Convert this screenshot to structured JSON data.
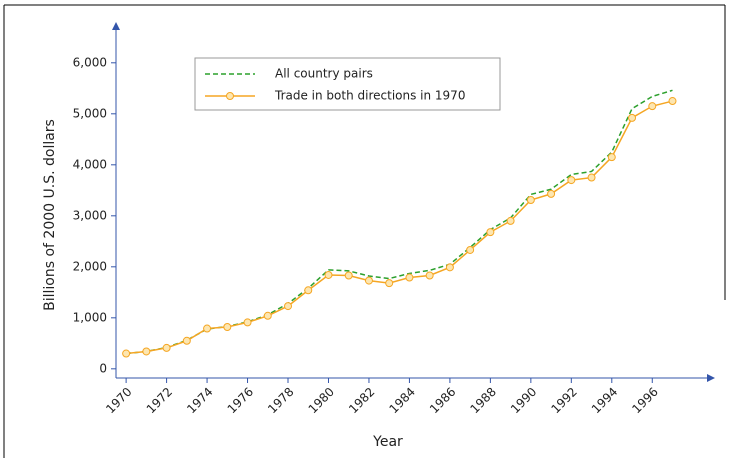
{
  "chart_data": {
    "type": "line",
    "x_label": "Year",
    "y_label": "Billions of 2000 U.S. dollars",
    "x": [
      1970,
      1971,
      1972,
      1973,
      1974,
      1975,
      1976,
      1977,
      1978,
      1979,
      1980,
      1981,
      1982,
      1983,
      1984,
      1985,
      1986,
      1987,
      1988,
      1989,
      1990,
      1991,
      1992,
      1993,
      1994,
      1995,
      1996,
      1997
    ],
    "series": [
      {
        "name": "All country pairs",
        "color": "#2ca02c",
        "dashed": true,
        "markers": false,
        "values": [
          300,
          340,
          420,
          560,
          780,
          830,
          920,
          1060,
          1280,
          1580,
          1940,
          1920,
          1820,
          1770,
          1870,
          1930,
          2050,
          2380,
          2730,
          2960,
          3420,
          3520,
          3810,
          3870,
          4250,
          5100,
          5340,
          5460
        ]
      },
      {
        "name": "Trade in both directions in 1970",
        "color": "#f5a623",
        "dashed": false,
        "markers": true,
        "values": [
          300,
          340,
          410,
          550,
          790,
          820,
          910,
          1040,
          1230,
          1540,
          1840,
          1830,
          1730,
          1680,
          1790,
          1830,
          1990,
          2330,
          2680,
          2900,
          3310,
          3430,
          3700,
          3750,
          4150,
          4920,
          5150,
          5250
        ]
      }
    ],
    "xlim": [
      1969.5,
      1999.1
    ],
    "xticks": [
      1970,
      1972,
      1974,
      1976,
      1978,
      1980,
      1982,
      1984,
      1986,
      1988,
      1990,
      1992,
      1994,
      1996
    ],
    "ylim": [
      -180,
      6800
    ],
    "yticks": [
      0,
      {
        "value": 1000,
        "label": "1,000"
      },
      {
        "value": 2000,
        "label": "2,000"
      },
      {
        "value": 3000,
        "label": "3,000"
      },
      {
        "value": 4000,
        "label": "4,000"
      },
      {
        "value": 5000,
        "label": "5,000"
      },
      {
        "value": 6000,
        "label": "6,000"
      }
    ],
    "axis_color": "#3355aa"
  }
}
